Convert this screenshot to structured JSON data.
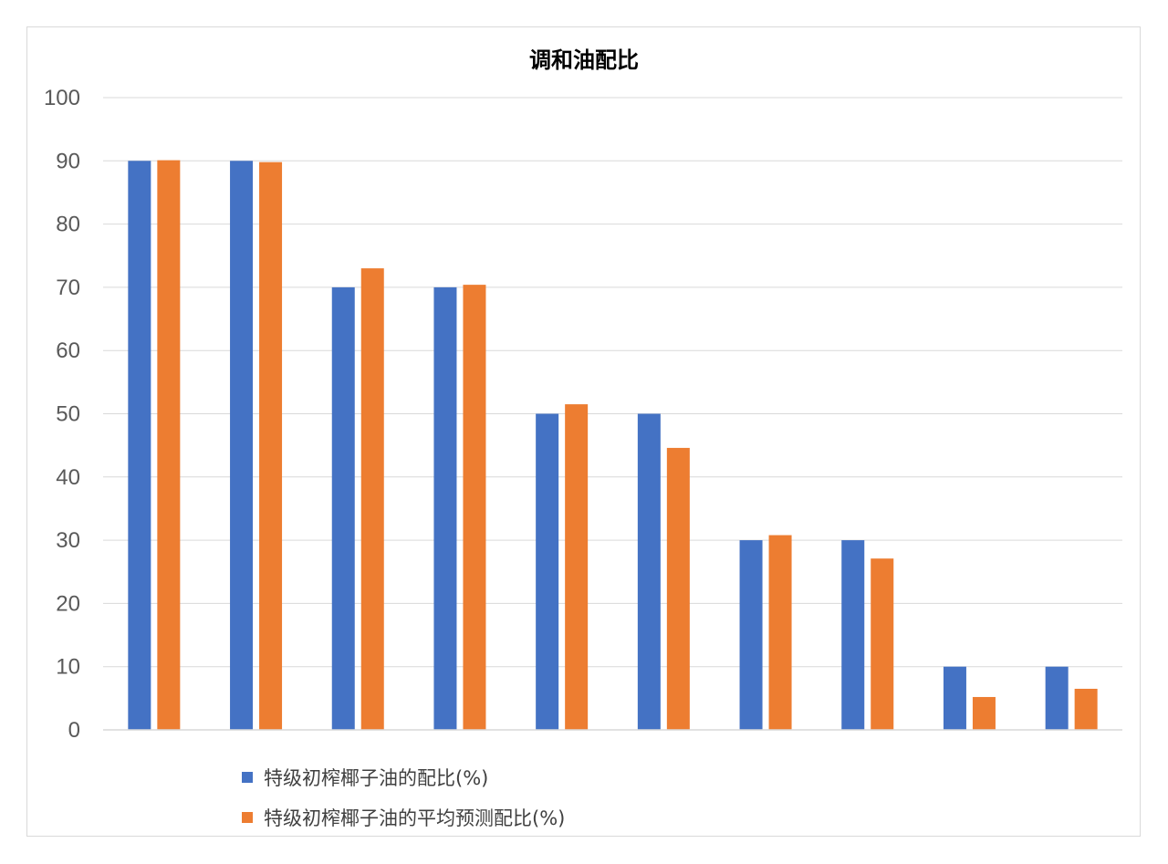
{
  "chart_data": {
    "type": "bar",
    "title": "调和油配比",
    "xlabel": "",
    "ylabel": "",
    "ylim": [
      0,
      100
    ],
    "yticks": [
      "0",
      "10",
      "20",
      "30",
      "40",
      "50",
      "60",
      "70",
      "80",
      "90",
      "100"
    ],
    "grid": true,
    "legend_position": "bottom-left",
    "categories": [
      "",
      "",
      "",
      "",
      "",
      "",
      "",
      "",
      "",
      ""
    ],
    "series": [
      {
        "name": "特级初榨椰子油的配比(%)",
        "color": "#4472C4",
        "values": [
          90,
          90,
          70,
          70,
          50,
          50,
          30,
          30,
          10,
          10
        ]
      },
      {
        "name": "特级初榨椰子油的平均预测配比(%)",
        "color": "#ED7D31",
        "values": [
          90.1,
          89.8,
          73,
          70.4,
          51.5,
          44.6,
          30.8,
          27.1,
          5.2,
          6.5
        ]
      }
    ]
  }
}
